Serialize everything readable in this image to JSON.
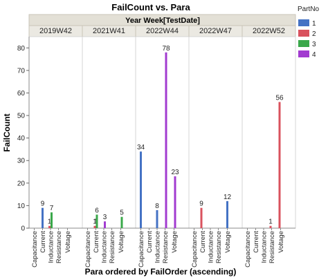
{
  "chart_data": {
    "type": "bar",
    "title": "FailCount vs. Para",
    "group_title": "Year Week[TestDate]",
    "xlabel": "Para ordered by FailOrder (ascending)",
    "ylabel": "FailCount",
    "ylim": [
      0,
      85
    ],
    "yticks": [
      0,
      10,
      20,
      30,
      40,
      50,
      60,
      70,
      80
    ],
    "grid": false,
    "legend_placement": "right",
    "legend_title": "PartNo",
    "categories": [
      "Capacitance",
      "Current",
      "Inductance",
      "Resistance",
      "Voltage"
    ],
    "series": [
      {
        "name": "1",
        "color": "#4472c4"
      },
      {
        "name": "2",
        "color": "#d9525e"
      },
      {
        "name": "3",
        "color": "#3aa84a"
      },
      {
        "name": "4",
        "color": "#a23bd0"
      }
    ],
    "panels": [
      {
        "name": "2019W42",
        "bars": [
          {
            "category": "Current",
            "series": "1",
            "value": 9
          },
          {
            "category": "Inductance",
            "series": "2",
            "value": 1
          },
          {
            "category": "Inductance",
            "series": "3",
            "value": 7
          }
        ]
      },
      {
        "name": "2021W41",
        "bars": [
          {
            "category": "Current",
            "series": "1",
            "value": 1
          },
          {
            "category": "Current",
            "series": "2",
            "value": 1
          },
          {
            "category": "Current",
            "series": "3",
            "value": 6
          },
          {
            "category": "Inductance",
            "series": "4",
            "value": 3
          },
          {
            "category": "Voltage",
            "series": "3",
            "value": 5
          }
        ]
      },
      {
        "name": "2022W44",
        "bars": [
          {
            "category": "Capacitance",
            "series": "1",
            "value": 34
          },
          {
            "category": "Inductance",
            "series": "1",
            "value": 8
          },
          {
            "category": "Resistance",
            "series": "4",
            "value": 78
          },
          {
            "category": "Voltage",
            "series": "4",
            "value": 23
          }
        ]
      },
      {
        "name": "2022W47",
        "bars": [
          {
            "category": "Current",
            "series": "2",
            "value": 9
          },
          {
            "category": "Voltage",
            "series": "1",
            "value": 12
          }
        ]
      },
      {
        "name": "2022W52",
        "bars": [
          {
            "category": "Resistance",
            "series": "2",
            "value": 1
          },
          {
            "category": "Voltage",
            "series": "2",
            "value": 56
          }
        ]
      }
    ]
  }
}
